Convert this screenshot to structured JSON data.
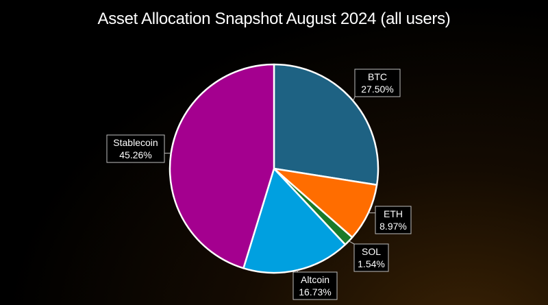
{
  "chart_data": {
    "type": "pie",
    "title": "Asset Allocation Snapshot August 2024 (all users)",
    "slices": [
      {
        "label": "BTC",
        "value": 27.5,
        "value_label": "27.50%",
        "color": "#1e6283"
      },
      {
        "label": "ETH",
        "value": 8.97,
        "value_label": "8.97%",
        "color": "#ff6d00"
      },
      {
        "label": "SOL",
        "value": 1.54,
        "value_label": "1.54%",
        "color": "#1a7a2a"
      },
      {
        "label": "Altcoin",
        "value": 16.73,
        "value_label": "16.73%",
        "color": "#00a0e0"
      },
      {
        "label": "Stablecoin",
        "value": 45.26,
        "value_label": "45.26%",
        "color": "#a4008f"
      }
    ],
    "start_angle_deg": 0,
    "direction": "clockwise",
    "legend": "none",
    "label_style": "callout boxes with leader lines"
  }
}
